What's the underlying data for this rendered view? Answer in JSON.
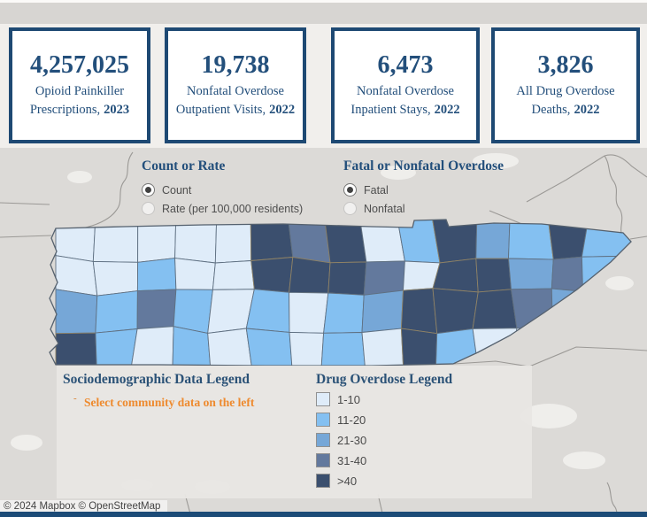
{
  "colors": {
    "accent_navy": "#1E4973",
    "header_blue": "#234F7B",
    "orange": "#EE8A2E",
    "bottom_bar": "#1C4B77"
  },
  "stat_cards": [
    {
      "value": "4,257,025",
      "line1": "Opioid Painkiller",
      "line2": "Prescriptions,",
      "year": "2023"
    },
    {
      "value": "19,738",
      "line1": "Nonfatal Overdose",
      "line2": "Outpatient Visits,",
      "year": "2022"
    },
    {
      "value": "6,473",
      "line1": "Nonfatal Overdose",
      "line2": "Inpatient Stays,",
      "year": "2022"
    },
    {
      "value": "3,826",
      "line1": "All Drug Overdose",
      "line2": "Deaths,",
      "year": "2022"
    }
  ],
  "controls": {
    "count_rate": {
      "title": "Count or Rate",
      "options": [
        {
          "label": "Count",
          "selected": true
        },
        {
          "label": "Rate (per 100,000 residents)",
          "selected": false
        }
      ]
    },
    "fatal_nonfatal": {
      "title": "Fatal or Nonfatal Overdose",
      "options": [
        {
          "label": "Fatal",
          "selected": true
        },
        {
          "label": "Nonfatal",
          "selected": false
        }
      ]
    }
  },
  "legends": {
    "socio": {
      "title": "Sociodemographic Data Legend",
      "bullet": "-",
      "note": "Select community data on the left"
    },
    "overdose": {
      "title": "Drug Overdose Legend",
      "bins": [
        {
          "label": "1-10",
          "color": "#DFECF9"
        },
        {
          "label": "11-20",
          "color": "#84C0F1"
        },
        {
          "label": "21-30",
          "color": "#76A7D7"
        },
        {
          "label": "31-40",
          "color": "#63799D"
        },
        {
          "label": ">40",
          "color": "#3B4F6E"
        }
      ]
    }
  },
  "map": {
    "attribution": "© 2024 Mapbox  © OpenStreetMap",
    "county_bins": [
      [
        1,
        1,
        1,
        1,
        1,
        5,
        4,
        5,
        1,
        2,
        5,
        3,
        2,
        5,
        2
      ],
      [
        1,
        1,
        2,
        1,
        1,
        5,
        5,
        5,
        4,
        1,
        5,
        5,
        3,
        4,
        2
      ],
      [
        3,
        2,
        4,
        2,
        1,
        2,
        1,
        2,
        3,
        5,
        5,
        5,
        4,
        3,
        1
      ],
      [
        5,
        2,
        1,
        2,
        1,
        2,
        1,
        2,
        1,
        5,
        2,
        1,
        1,
        1,
        1
      ]
    ]
  }
}
